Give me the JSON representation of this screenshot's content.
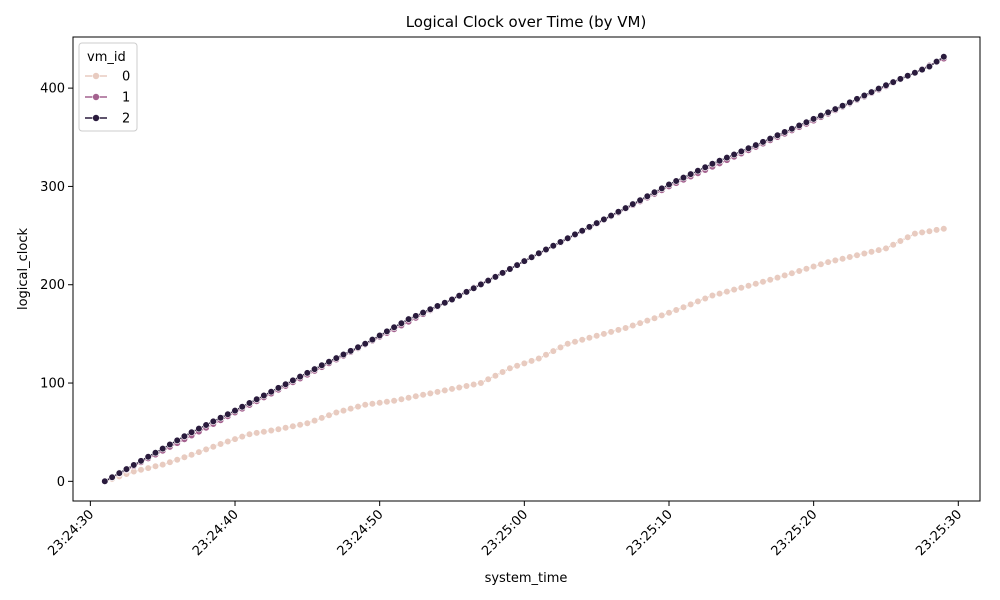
{
  "chart_data": {
    "type": "line",
    "title": "Logical Clock over Time (by VM)",
    "xlabel": "system_time",
    "ylabel": "logical_clock",
    "x_unit": "time of day",
    "xlim": [
      "23:24:28.8",
      "23:25:31.5"
    ],
    "ylim": [
      -20,
      452
    ],
    "x_ticks": [
      "23:24:30",
      "23:24:40",
      "23:24:50",
      "23:25:00",
      "23:25:10",
      "23:25:20",
      "23:25:30"
    ],
    "y_ticks": [
      0,
      100,
      200,
      300,
      400
    ],
    "grid": false,
    "legend": {
      "title": "vm_id",
      "placement": "top-left"
    },
    "series": [
      {
        "name": "0",
        "color": "#e8cbc0",
        "points": [
          [
            "23:24:31",
            0
          ],
          [
            "23:24:33",
            10
          ],
          [
            "23:24:35",
            17
          ],
          [
            "23:24:37",
            27
          ],
          [
            "23:24:39",
            38
          ],
          [
            "23:24:41",
            48
          ],
          [
            "23:24:43",
            53
          ],
          [
            "23:24:45",
            59
          ],
          [
            "23:24:47",
            70
          ],
          [
            "23:24:49",
            78
          ],
          [
            "23:24:51",
            82
          ],
          [
            "23:24:53",
            88
          ],
          [
            "23:24:55",
            94
          ],
          [
            "23:24:57",
            100
          ],
          [
            "23:24:59",
            115
          ],
          [
            "23:25:01",
            125
          ],
          [
            "23:25:03",
            140
          ],
          [
            "23:25:05",
            148
          ],
          [
            "23:25:07",
            156
          ],
          [
            "23:25:09",
            166
          ],
          [
            "23:25:11",
            177
          ],
          [
            "23:25:13",
            189
          ],
          [
            "23:25:15",
            197
          ],
          [
            "23:25:17",
            205
          ],
          [
            "23:25:19",
            214
          ],
          [
            "23:25:21",
            223
          ],
          [
            "23:25:23",
            230
          ],
          [
            "23:25:25",
            237
          ],
          [
            "23:25:27",
            252
          ],
          [
            "23:25:29",
            257
          ]
        ]
      },
      {
        "name": "1",
        "color": "#a4628f",
        "points": [
          [
            "23:24:31",
            0
          ],
          [
            "23:24:40",
            70
          ],
          [
            "23:24:50",
            147
          ],
          [
            "23:25:00",
            224
          ],
          [
            "23:25:10",
            300
          ],
          [
            "23:25:20",
            367
          ],
          [
            "23:25:29",
            430
          ]
        ]
      },
      {
        "name": "2",
        "color": "#2a1b3d",
        "points": [
          [
            "23:24:31",
            0
          ],
          [
            "23:24:34",
            25
          ],
          [
            "23:24:37",
            50
          ],
          [
            "23:24:40",
            72
          ],
          [
            "23:24:43",
            95
          ],
          [
            "23:24:46",
            118
          ],
          [
            "23:24:49",
            140
          ],
          [
            "23:24:52",
            165
          ],
          [
            "23:24:55",
            185
          ],
          [
            "23:24:58",
            208
          ],
          [
            "23:25:01",
            232
          ],
          [
            "23:25:04",
            255
          ],
          [
            "23:25:07",
            278
          ],
          [
            "23:25:10",
            302
          ],
          [
            "23:25:13",
            323
          ],
          [
            "23:25:16",
            342
          ],
          [
            "23:25:19",
            362
          ],
          [
            "23:25:22",
            382
          ],
          [
            "23:25:25",
            403
          ],
          [
            "23:25:28",
            422
          ],
          [
            "23:25:29",
            432
          ]
        ]
      }
    ]
  }
}
